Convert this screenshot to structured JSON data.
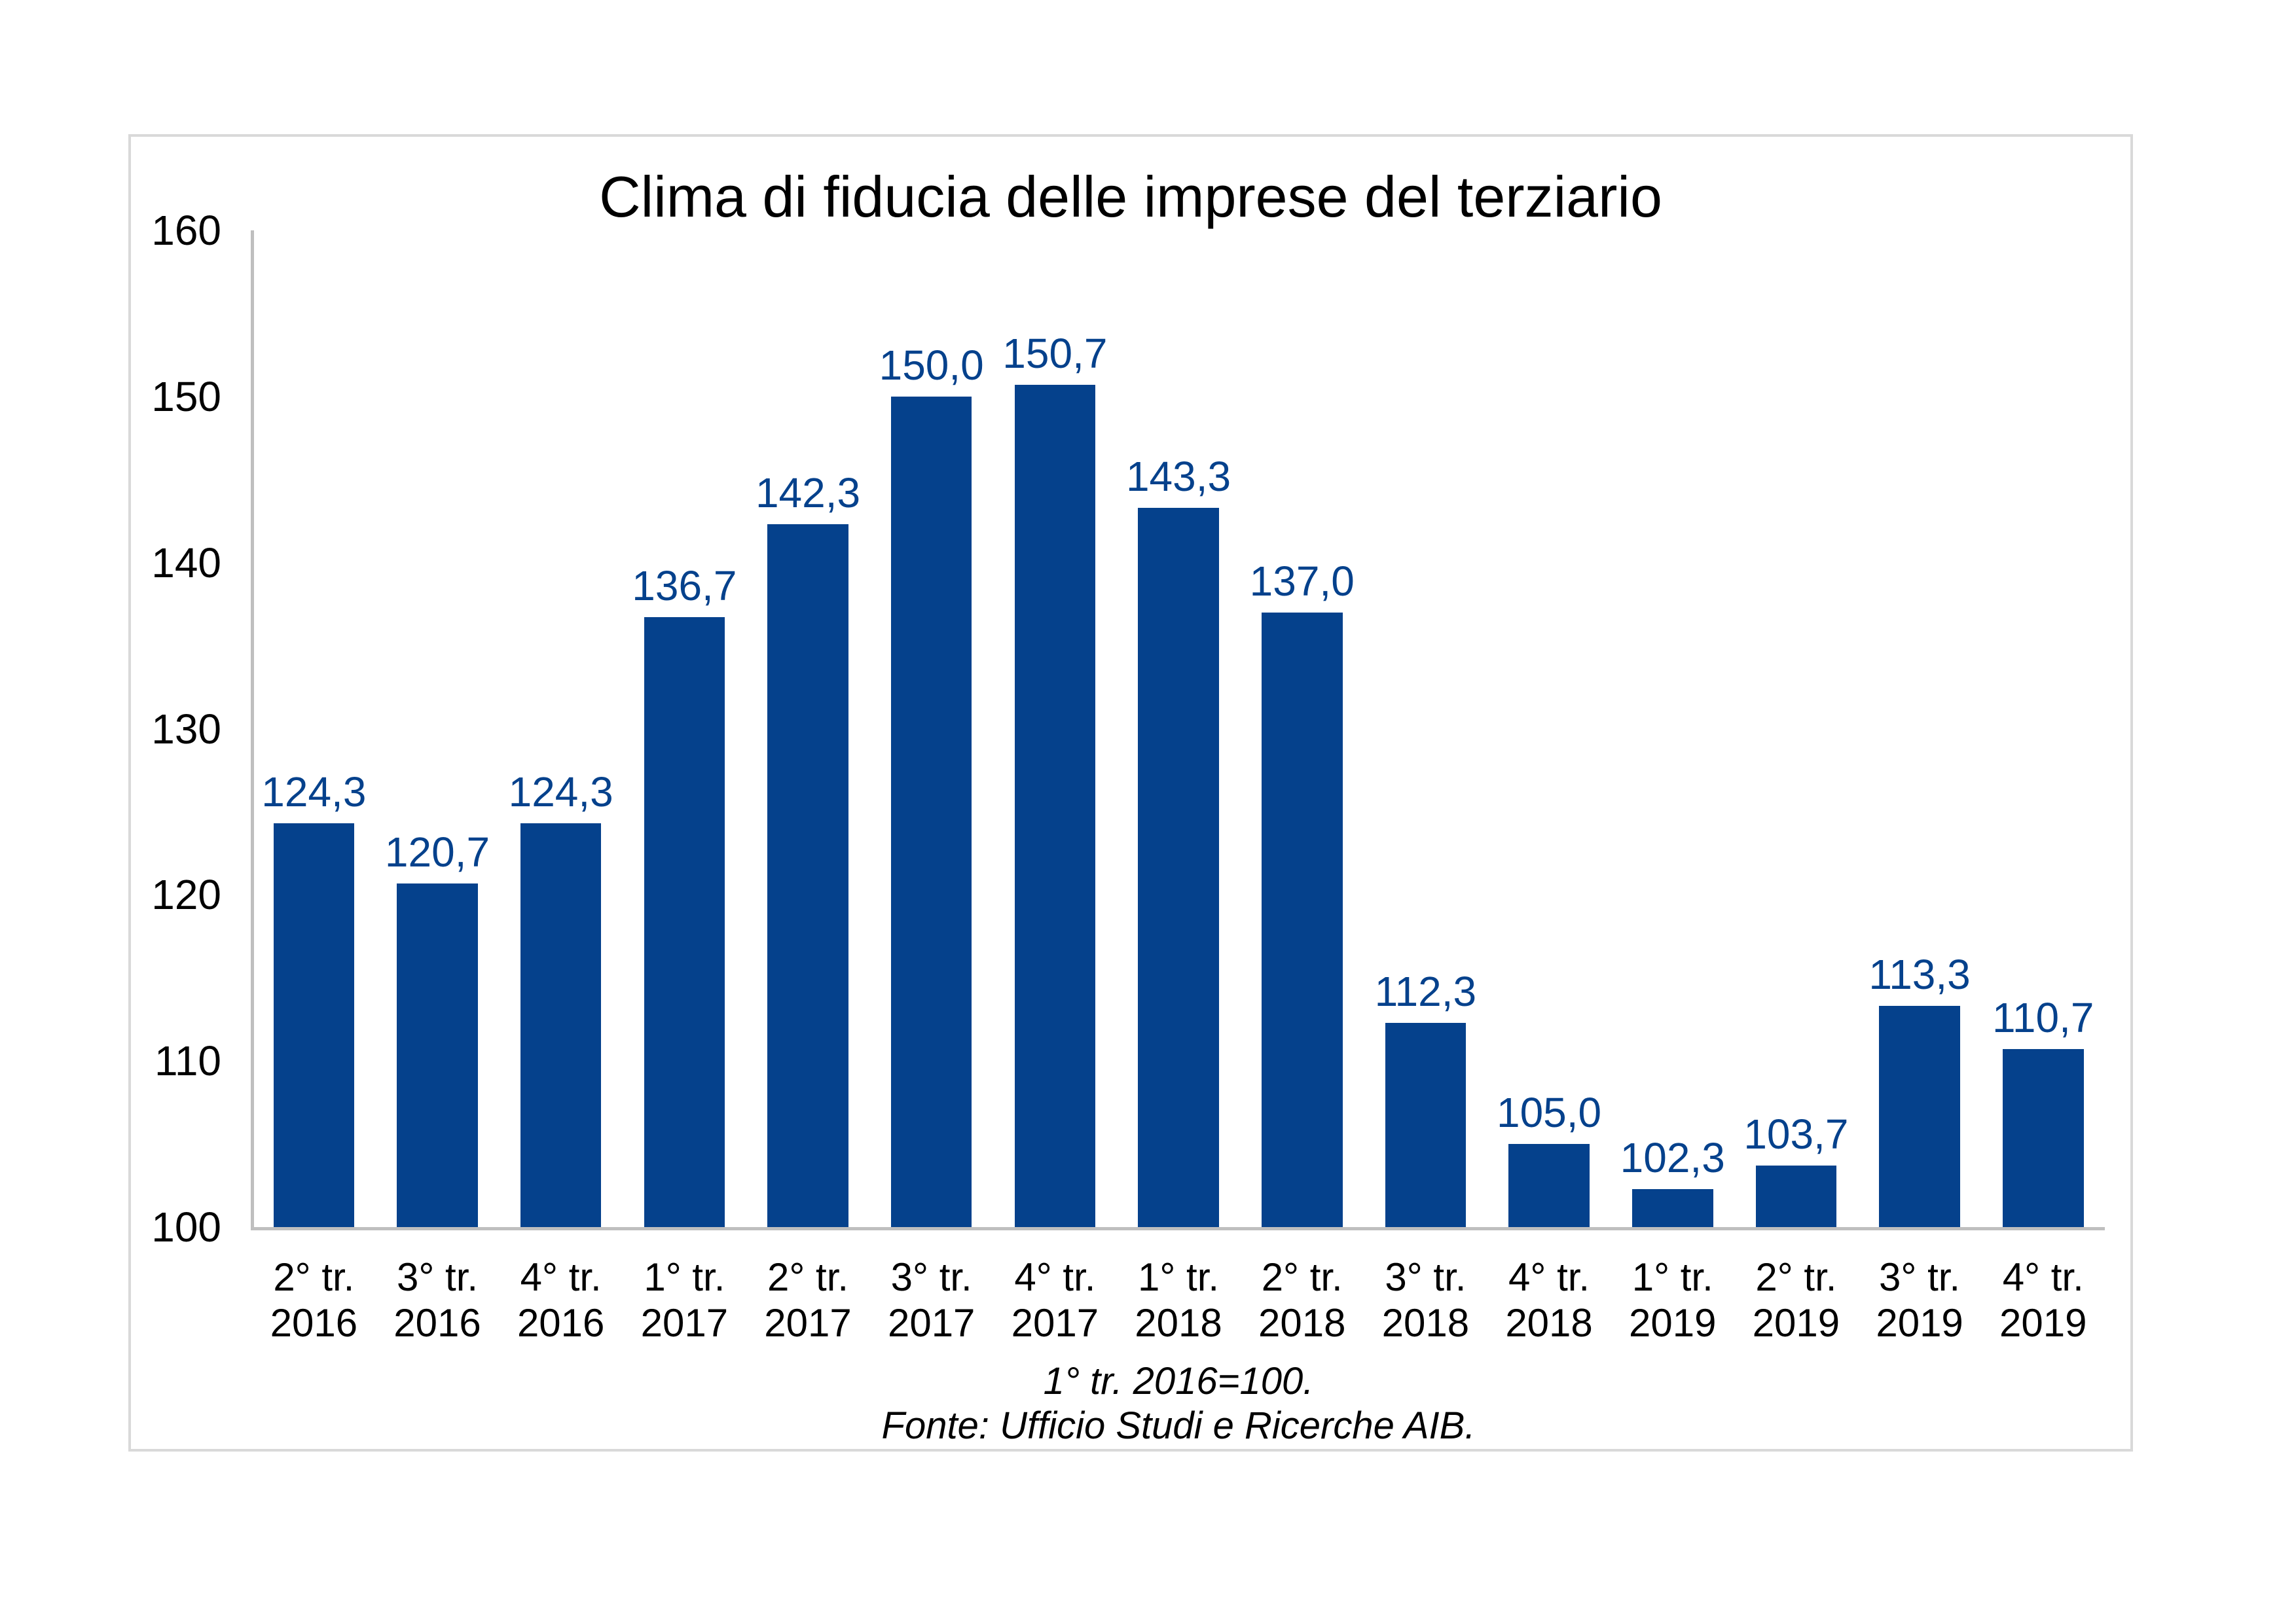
{
  "chart": {
    "footnote_line1": "1° tr. 2016=100.",
    "footnote_line2": "Fonte: Ufficio Studi e Ricerche AIB.",
    "colors": {
      "bar": "#05418C",
      "value_label": "#05418C",
      "axis_line": "#BFBFBF",
      "baseline": "#D1D1D1",
      "frame_border": "#D9D9D9",
      "text": "#000000"
    }
  },
  "chart_data": {
    "type": "bar",
    "title": "Clima di fiducia delle imprese del terziario",
    "categories": [
      {
        "quarter": "2° tr.",
        "year": "2016"
      },
      {
        "quarter": "3° tr.",
        "year": "2016"
      },
      {
        "quarter": "4° tr.",
        "year": "2016"
      },
      {
        "quarter": "1° tr.",
        "year": "2017"
      },
      {
        "quarter": "2° tr.",
        "year": "2017"
      },
      {
        "quarter": "3° tr.",
        "year": "2017"
      },
      {
        "quarter": "4° tr.",
        "year": "2017"
      },
      {
        "quarter": "1° tr.",
        "year": "2018"
      },
      {
        "quarter": "2° tr.",
        "year": "2018"
      },
      {
        "quarter": "3° tr.",
        "year": "2018"
      },
      {
        "quarter": "4° tr.",
        "year": "2018"
      },
      {
        "quarter": "1° tr.",
        "year": "2019"
      },
      {
        "quarter": "2° tr.",
        "year": "2019"
      },
      {
        "quarter": "3° tr.",
        "year": "2019"
      },
      {
        "quarter": "4° tr.",
        "year": "2019"
      }
    ],
    "values": [
      124.3,
      120.7,
      124.3,
      136.7,
      142.3,
      150.0,
      150.7,
      143.3,
      137.0,
      112.3,
      105.0,
      102.3,
      103.7,
      113.3,
      110.7
    ],
    "value_labels": [
      "124,3",
      "120,7",
      "124,3",
      "136,7",
      "142,3",
      "150,0",
      "150,7",
      "143,3",
      "137,0",
      "112,3",
      "105,0",
      "102,3",
      "103,7",
      "113,3",
      "110,7"
    ],
    "xlabel": "",
    "ylabel": "",
    "ylim": [
      100,
      160
    ],
    "yticks": [
      160,
      150,
      140,
      130,
      120,
      110,
      100
    ],
    "grid": false,
    "legend": "none",
    "annotations": [
      "1° tr. 2016=100.",
      "Fonte: Ufficio Studi e Ricerche AIB."
    ]
  }
}
